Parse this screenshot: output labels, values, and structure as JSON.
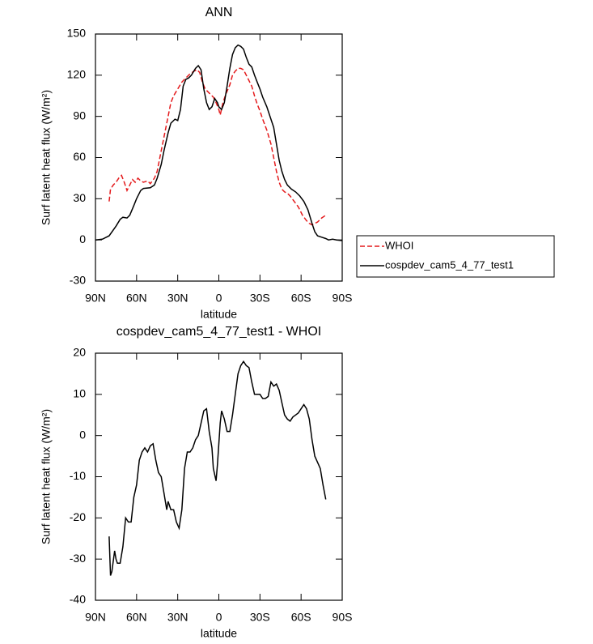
{
  "chart_data": [
    {
      "type": "line",
      "title": "ANN",
      "xlabel": "latitude",
      "ylabel": "Surf latent heat flux (W/m²)",
      "xlim": [
        90,
        -90
      ],
      "xticks": [
        {
          "value": 90,
          "label": "90N"
        },
        {
          "value": 60,
          "label": "60N"
        },
        {
          "value": 30,
          "label": "30N"
        },
        0,
        {
          "value": -30,
          "label": "30S"
        },
        {
          "value": -60,
          "label": "60S"
        },
        {
          "value": -90,
          "label": "90S"
        }
      ],
      "ylim": [
        -30,
        150
      ],
      "yticks": [
        -30,
        0,
        30,
        60,
        90,
        120,
        150
      ],
      "legend": "right",
      "series": [
        {
          "name": "WHOI",
          "color": "#e41a1c",
          "linestyle": "dashed",
          "x": [
            80,
            79,
            77,
            75,
            73,
            71,
            69,
            67,
            65,
            63,
            61,
            59,
            57,
            55,
            52,
            50,
            47,
            45,
            43,
            41,
            39,
            37,
            35,
            33,
            30,
            27,
            24,
            21,
            18,
            16,
            14,
            12,
            10,
            8,
            6,
            4,
            2,
            0,
            -1,
            -3,
            -5,
            -8,
            -10,
            -12,
            -14,
            -16,
            -18,
            -20,
            -22,
            -24,
            -26,
            -28,
            -30,
            -32,
            -35,
            -38,
            -40,
            -42,
            -44,
            -46,
            -48,
            -50,
            -52,
            -55,
            -58,
            -61,
            -64,
            -66,
            -68,
            -70,
            -72,
            -75,
            -78
          ],
          "values": [
            28,
            37,
            40,
            42,
            45,
            47,
            42,
            36,
            40,
            44,
            42,
            45,
            43,
            42,
            43,
            41,
            45,
            50,
            60,
            70,
            80,
            90,
            100,
            105,
            110,
            115,
            118,
            121,
            123,
            124,
            122,
            115,
            110,
            108,
            106,
            104,
            100,
            95,
            91,
            100,
            106,
            113,
            120,
            123,
            125,
            125,
            124,
            120,
            116,
            112,
            105,
            99,
            94,
            88,
            80,
            70,
            60,
            50,
            42,
            37,
            35,
            34,
            32,
            28,
            24,
            18,
            14,
            12,
            11,
            12,
            13,
            16,
            18
          ]
        },
        {
          "name": "cospdev_cam5_4_77_test1",
          "color": "#000000",
          "linestyle": "solid",
          "x": [
            90,
            85,
            80,
            75,
            72,
            70,
            67,
            65,
            62,
            60,
            57,
            55,
            50,
            47,
            45,
            42,
            40,
            37,
            35,
            32,
            30,
            28,
            26,
            24,
            22,
            20,
            17,
            15,
            13,
            11,
            9,
            7,
            5,
            3,
            1,
            0,
            -2,
            -4,
            -6,
            -8,
            -10,
            -12,
            -14,
            -16,
            -18,
            -20,
            -22,
            -24,
            -26,
            -28,
            -30,
            -32,
            -35,
            -38,
            -40,
            -42,
            -44,
            -46,
            -48,
            -50,
            -53,
            -56,
            -59,
            -62,
            -65,
            -68,
            -70,
            -72,
            -75,
            -78,
            -80,
            -83,
            -86,
            -90
          ],
          "values": [
            0,
            0.5,
            3,
            10,
            15,
            16.5,
            16,
            18,
            25,
            30,
            36,
            37.5,
            38,
            40,
            45,
            55,
            65,
            78,
            85,
            88,
            87,
            95,
            112,
            117,
            118,
            120,
            125,
            127,
            124,
            110,
            100,
            95,
            97,
            103,
            100,
            97,
            95,
            100,
            112,
            125,
            135,
            140,
            142,
            141,
            139,
            133,
            128,
            126,
            120,
            115,
            110,
            104,
            97,
            88,
            82,
            70,
            58,
            50,
            44,
            40,
            37,
            35,
            32,
            28,
            22,
            12,
            6,
            3,
            2,
            1,
            0,
            0.5,
            0,
            -0.5
          ]
        }
      ]
    },
    {
      "type": "line",
      "title": "cospdev_cam5_4_77_test1 - WHOI",
      "xlabel": "latitude",
      "ylabel": "Surf latent heat flux (W/m²)",
      "xlim": [
        90,
        -90
      ],
      "xticks": [
        {
          "value": 90,
          "label": "90N"
        },
        {
          "value": 60,
          "label": "60N"
        },
        {
          "value": 30,
          "label": "30N"
        },
        0,
        {
          "value": -30,
          "label": "30S"
        },
        {
          "value": -60,
          "label": "60S"
        },
        {
          "value": -90,
          "label": "90S"
        }
      ],
      "ylim": [
        -40,
        20
      ],
      "yticks": [
        -40,
        -30,
        -20,
        -10,
        0,
        10,
        20
      ],
      "series": [
        {
          "color": "#000000",
          "linestyle": "solid",
          "x": [
            80,
            79,
            78,
            76,
            75,
            74,
            72,
            70,
            68,
            66,
            64,
            62,
            60,
            58,
            56,
            54,
            52,
            50,
            48,
            46,
            44,
            42,
            40,
            38,
            37,
            35,
            33,
            31,
            29,
            27,
            25,
            23,
            21,
            19,
            17,
            15,
            13,
            11,
            9,
            7,
            5,
            4,
            2,
            1,
            -1,
            -2,
            -4,
            -6,
            -8,
            -10,
            -12,
            -14,
            -16,
            -18,
            -20,
            -22,
            -24,
            -26,
            -28,
            -30,
            -32,
            -34,
            -36,
            -38,
            -40,
            -42,
            -44,
            -46,
            -48,
            -50,
            -52,
            -54,
            -56,
            -58,
            -60,
            -62,
            -64,
            -66,
            -68,
            -70,
            -72,
            -74,
            -76,
            -78
          ],
          "values": [
            -24.5,
            -34,
            -33,
            -28,
            -30,
            -31,
            -31,
            -27,
            -20,
            -21,
            -21,
            -15,
            -12,
            -6,
            -4,
            -3,
            -4,
            -2.5,
            -2,
            -6,
            -9,
            -10,
            -14,
            -18,
            -16,
            -18,
            -18,
            -21,
            -22.5,
            -18,
            -8,
            -4,
            -4,
            -3,
            -1,
            0,
            3,
            6,
            6.5,
            1,
            -3,
            -8,
            -11,
            -7,
            3,
            6,
            4,
            1,
            1,
            5,
            10,
            15,
            17,
            18,
            17,
            16.5,
            13,
            10,
            10,
            10,
            9,
            9,
            9.5,
            13,
            12,
            12.5,
            11,
            8,
            5,
            4,
            3.5,
            4.5,
            5,
            5.5,
            6.5,
            7.5,
            6.5,
            4,
            -1,
            -5,
            -6.5,
            -8,
            -12,
            -15.5
          ]
        }
      ]
    }
  ]
}
